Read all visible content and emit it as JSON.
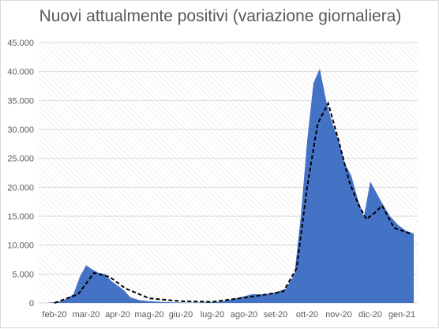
{
  "chart_data": {
    "type": "area",
    "title": "Nuovi attualmente positivi (variazione giornaliera)",
    "xlabel": "",
    "ylabel": "",
    "ylim": [
      0,
      45000
    ],
    "y_ticks": [
      0,
      5000,
      10000,
      15000,
      20000,
      25000,
      30000,
      35000,
      40000,
      45000
    ],
    "y_tick_labels": [
      "0",
      "5.000",
      "10.000",
      "15.000",
      "20.000",
      "25.000",
      "30.000",
      "35.000",
      "40.000",
      "45.000"
    ],
    "x_tick_labels": [
      "feb-20",
      "mar-20",
      "apr-20",
      "mag-20",
      "giu-20",
      "lug-20",
      "ago-20",
      "set-20",
      "ott-20",
      "nov-20",
      "dic-20",
      "gen-21"
    ],
    "grid": "horizontal",
    "legend": "none",
    "colors": {
      "area": "#4472c4",
      "trend": "#000000",
      "grid": "#d9d9d9",
      "hatch": "#e3e3e3"
    },
    "series": [
      {
        "kind": "area",
        "x": [
          "feb-20",
          "feb-20",
          "mar-20",
          "mar-20",
          "mar-20",
          "mar-20",
          "mar-20",
          "apr-20",
          "apr-20",
          "apr-20",
          "apr-20",
          "apr-20",
          "mag-20",
          "mag-20",
          "mag-20",
          "giu-20",
          "giu-20",
          "lug-20",
          "lug-20",
          "ago-20",
          "ago-20",
          "set-20",
          "set-20",
          "set-20",
          "ott-20",
          "ott-20",
          "ott-20",
          "ott-20",
          "ott-20",
          "nov-20",
          "nov-20",
          "nov-20",
          "nov-20",
          "nov-20",
          "dic-20",
          "dic-20",
          "dic-20",
          "dic-20",
          "dic-20",
          "gen-21",
          "gen-21",
          "gen-21",
          "gen-21"
        ],
        "values": [
          0,
          300,
          1500,
          4500,
          6500,
          5800,
          5200,
          5000,
          3800,
          3000,
          2200,
          1000,
          500,
          300,
          200,
          100,
          50,
          100,
          200,
          800,
          1500,
          1500,
          1800,
          2500,
          5000,
          15000,
          28000,
          38000,
          40500,
          35000,
          31000,
          28000,
          24000,
          22000,
          18000,
          15000,
          21000,
          19000,
          17000,
          15000,
          13500,
          12500,
          12000
        ]
      },
      {
        "kind": "line-dashed",
        "x": [
          "feb-20",
          "mar-20",
          "mar-20",
          "apr-20",
          "apr-20",
          "mag-20",
          "giu-20",
          "lug-20",
          "ago-20",
          "set-20",
          "set-20",
          "ott-20",
          "ott-20",
          "ott-20",
          "nov-20",
          "nov-20",
          "nov-20",
          "dic-20",
          "dic-20",
          "dic-20",
          "dic-20",
          "gen-21",
          "gen-21"
        ],
        "values": [
          0,
          1500,
          5200,
          4500,
          2500,
          800,
          300,
          200,
          900,
          1500,
          2000,
          6000,
          20000,
          31000,
          34500,
          28000,
          21000,
          17000,
          14500,
          15500,
          16800,
          13000,
          12000
        ]
      }
    ]
  }
}
